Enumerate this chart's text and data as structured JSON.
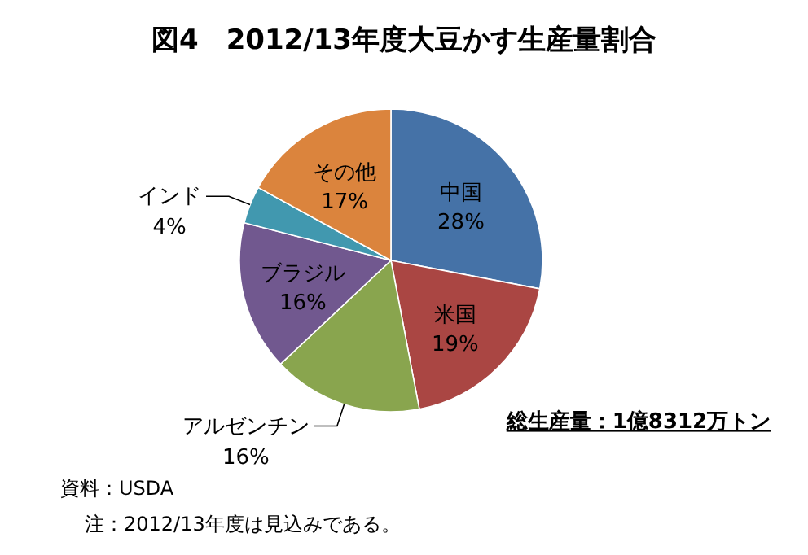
{
  "chart_data": {
    "type": "pie",
    "title": "図4　2012/13年度大豆かす生産量割合",
    "categories": [
      "中国",
      "米国",
      "アルゼンチン",
      "ブラジル",
      "インド",
      "その他"
    ],
    "values": [
      28,
      19,
      16,
      16,
      4,
      17
    ],
    "value_labels": [
      "28%",
      "19%",
      "16%",
      "16%",
      "4%",
      "17%"
    ],
    "colors": [
      "#4572a7",
      "#aa4643",
      "#89a54e",
      "#71588f",
      "#4198af",
      "#db843d"
    ],
    "annotations": [
      "総生産量：1億8312万トン",
      "資料：USDA",
      "注：2012/13年度は見込みである。"
    ]
  }
}
